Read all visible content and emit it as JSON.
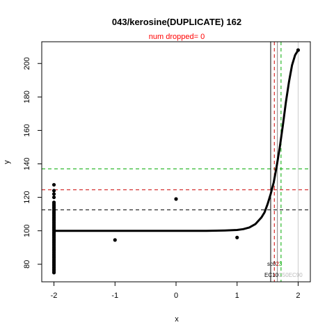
{
  "chart_data": {
    "type": "scatter",
    "title": "043/kerosine(DUPLICATE) 162",
    "subtitle": "num dropped= 0",
    "xlabel": "x",
    "ylabel": "y",
    "xlim": [
      -2.2,
      2.2
    ],
    "ylim": [
      69.5,
      213
    ],
    "xticks": [
      -2,
      -1,
      0,
      1,
      2
    ],
    "yticks": [
      80,
      100,
      120,
      140,
      160,
      180,
      200
    ],
    "points": [
      {
        "x": -2,
        "y": 127.5
      },
      {
        "x": -2,
        "y": 124
      },
      {
        "x": -2,
        "y": 122
      },
      {
        "x": -2,
        "y": 120
      },
      {
        "x": -2,
        "y": 117
      },
      {
        "x": -2,
        "y": 116
      },
      {
        "x": -2,
        "y": 115
      },
      {
        "x": -2,
        "y": 114
      },
      {
        "x": -2,
        "y": 113
      },
      {
        "x": -2,
        "y": 112
      },
      {
        "x": -2,
        "y": 111
      },
      {
        "x": -2,
        "y": 110
      },
      {
        "x": -2,
        "y": 109
      },
      {
        "x": -2,
        "y": 108
      },
      {
        "x": -2,
        "y": 107
      },
      {
        "x": -2,
        "y": 106
      },
      {
        "x": -2,
        "y": 105
      },
      {
        "x": -2,
        "y": 104
      },
      {
        "x": -2,
        "y": 103
      },
      {
        "x": -2,
        "y": 102
      },
      {
        "x": -2,
        "y": 101
      },
      {
        "x": -2,
        "y": 100
      },
      {
        "x": -2,
        "y": 99
      },
      {
        "x": -2,
        "y": 98
      },
      {
        "x": -2,
        "y": 97
      },
      {
        "x": -2,
        "y": 96
      },
      {
        "x": -2,
        "y": 95
      },
      {
        "x": -2,
        "y": 94
      },
      {
        "x": -2,
        "y": 93
      },
      {
        "x": -2,
        "y": 92
      },
      {
        "x": -2,
        "y": 91
      },
      {
        "x": -2,
        "y": 90
      },
      {
        "x": -2,
        "y": 89
      },
      {
        "x": -2,
        "y": 88
      },
      {
        "x": -2,
        "y": 87
      },
      {
        "x": -2,
        "y": 86
      },
      {
        "x": -2,
        "y": 85
      },
      {
        "x": -2,
        "y": 84
      },
      {
        "x": -2,
        "y": 83
      },
      {
        "x": -2,
        "y": 82
      },
      {
        "x": -2,
        "y": 81
      },
      {
        "x": -2,
        "y": 80
      },
      {
        "x": -2,
        "y": 79
      },
      {
        "x": -2,
        "y": 78
      },
      {
        "x": -2,
        "y": 77
      },
      {
        "x": -2,
        "y": 76
      },
      {
        "x": -2,
        "y": 75
      },
      {
        "x": -1,
        "y": 94.5
      },
      {
        "x": 0,
        "y": 119
      },
      {
        "x": 1,
        "y": 96
      },
      {
        "x": 2,
        "y": 208
      }
    ],
    "fit_curve": {
      "x": [
        -2,
        -1.5,
        -1,
        -0.5,
        0,
        0.5,
        0.8,
        1.0,
        1.1,
        1.2,
        1.3,
        1.4,
        1.45,
        1.5,
        1.55,
        1.6,
        1.65,
        1.7,
        1.75,
        1.8,
        1.85,
        1.9,
        1.95,
        2.0
      ],
      "y": [
        100,
        100,
        100,
        100,
        100,
        100,
        100.2,
        100.5,
        101,
        102,
        104,
        108,
        111,
        116,
        122,
        129,
        139,
        150,
        163,
        177,
        189,
        199,
        205,
        208
      ]
    },
    "hlines": [
      {
        "y": 112.5,
        "color": "#000000",
        "dashed": true
      },
      {
        "y": 124.5,
        "color": "#cc0000",
        "dashed": true
      },
      {
        "y": 137,
        "color": "#00aa00",
        "dashed": true
      }
    ],
    "vlines": [
      {
        "x": 1.55,
        "color": "#000000",
        "dashed": false
      },
      {
        "x": 1.61,
        "color": "#cc0000",
        "dashed": true
      },
      {
        "x": 1.66,
        "color": "#888888",
        "dashed": false
      },
      {
        "x": 1.72,
        "color": "#00aa00",
        "dashed": true
      },
      {
        "x": 2.0,
        "color": "#cccccc",
        "dashed": false
      }
    ],
    "annotations": {
      "score": {
        "label": "sc",
        "mid": "0",
        "red": "2",
        "green": "3"
      },
      "ec": {
        "black": "EC10",
        "gray1": "C50",
        "gray2": "EC90"
      }
    },
    "colors": {
      "title_red": "#ff0000",
      "red": "#cc0000",
      "green": "#00aa00"
    }
  }
}
